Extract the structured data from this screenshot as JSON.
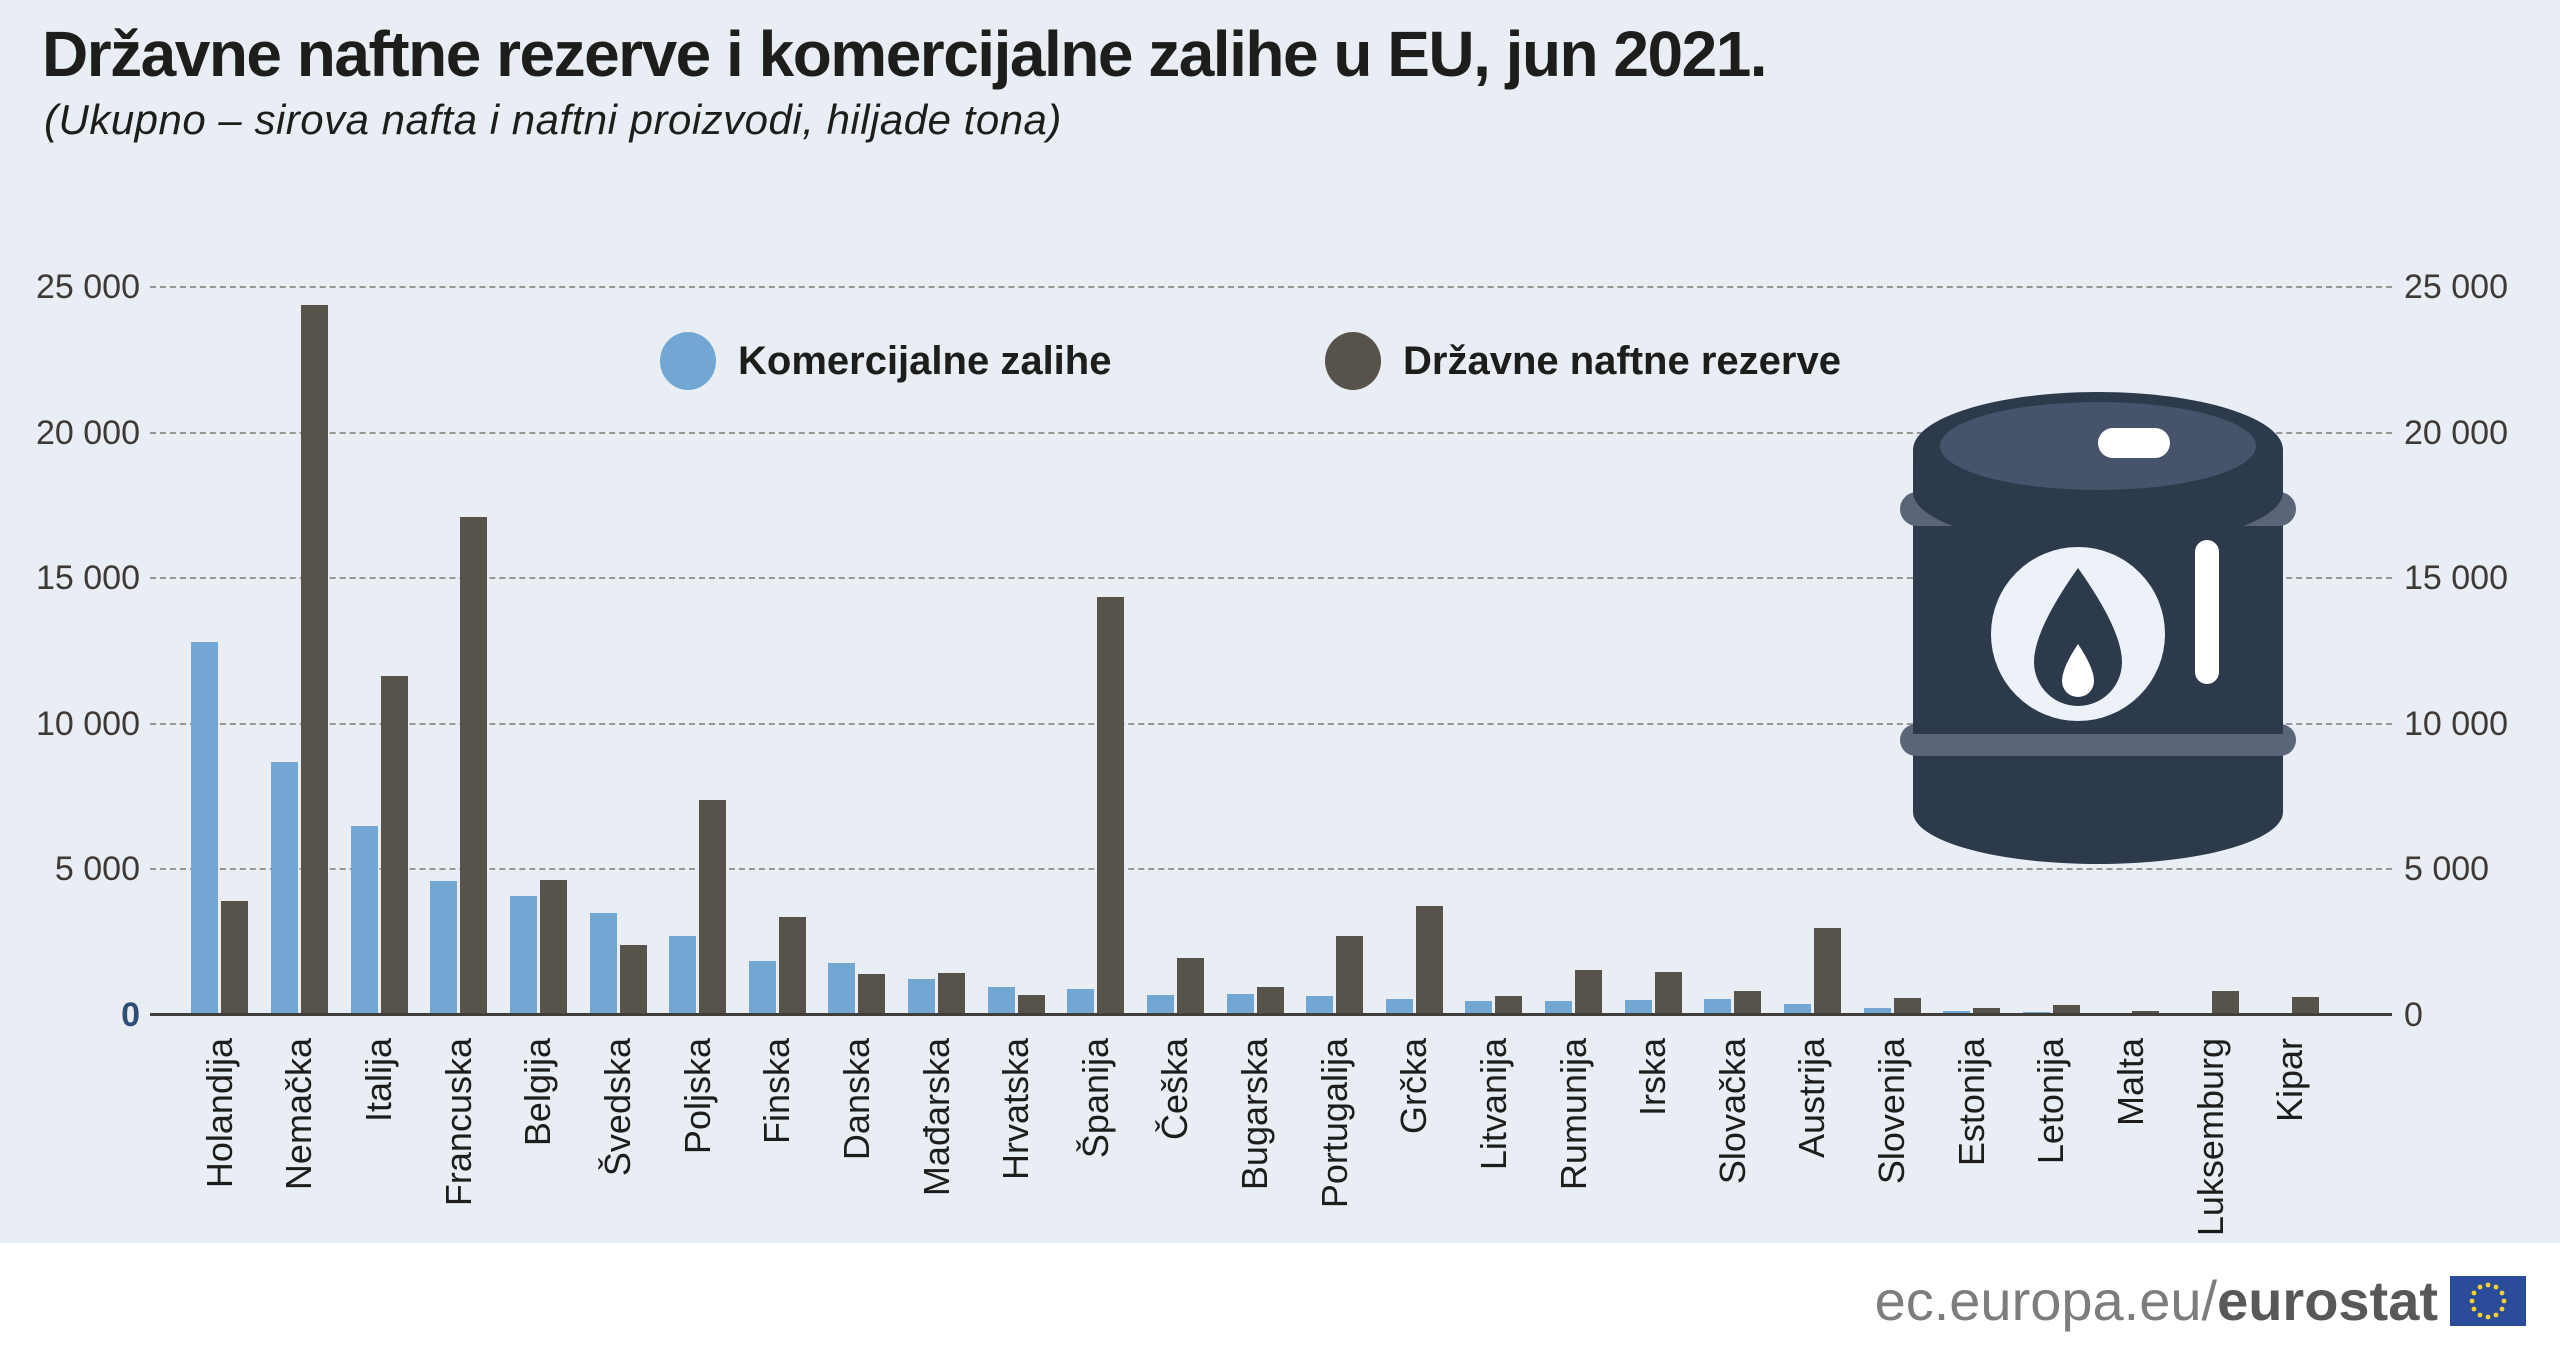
{
  "title": "Državne naftne rezerve i komercijalne zalihe u EU, jun 2021.",
  "subtitle": "(Ukupno – sirova nafta i naftni proizvodi, hiljade tona)",
  "legend": {
    "items": [
      {
        "label": "Komercijalne zalihe",
        "series": "commercial",
        "color": "#72A7D3"
      },
      {
        "label": "Državne naftne rezerve",
        "series": "emergency",
        "color": "#57524A"
      }
    ]
  },
  "y_axis": {
    "tick_values": [
      0,
      5000,
      10000,
      15000,
      20000,
      25000
    ],
    "tick_labels": [
      "0",
      "5 000",
      "10 000",
      "15 000",
      "20 000",
      "25 000"
    ],
    "max": 25000
  },
  "chart_data": {
    "type": "bar",
    "title": "Državne naftne rezerve i komercijalne zalihe u EU, jun 2021.",
    "subtitle": "(Ukupno – sirova nafta i naftni proizvodi, hiljade tona)",
    "units": "hiljade tona",
    "ylim": [
      0,
      25000
    ],
    "grid": true,
    "legend_position": "top",
    "categories": [
      "Holandija",
      "Nemačka",
      "Italija",
      "Francuska",
      "Belgija",
      "Švedska",
      "Poljska",
      "Finska",
      "Danska",
      "Mađarska",
      "Hrvatska",
      "Španija",
      "Češka",
      "Bugarska",
      "Portugalija",
      "Grčka",
      "Litvanija",
      "Rumunija",
      "Irska",
      "Slovačka",
      "Austrija",
      "Slovenija",
      "Estonija",
      "Letonija",
      "Malta",
      "Luksemburg",
      "Kipar"
    ],
    "series": [
      {
        "name": "Komercijalne zalihe",
        "color": "#72A7D3",
        "values": [
          12800,
          8700,
          6500,
          4600,
          4100,
          3500,
          2700,
          1850,
          1800,
          1250,
          950,
          900,
          700,
          720,
          650,
          560,
          480,
          490,
          530,
          550,
          380,
          250,
          150,
          100,
          80,
          50,
          60
        ]
      },
      {
        "name": "Državne naftne rezerve",
        "color": "#57524A",
        "values": [
          3900,
          24400,
          11650,
          17100,
          4650,
          2400,
          7400,
          3350,
          1400,
          1450,
          700,
          14350,
          1950,
          970,
          2700,
          3750,
          650,
          1530,
          1490,
          820,
          3000,
          570,
          250,
          340,
          130,
          820,
          610
        ]
      }
    ]
  },
  "footer": {
    "url_regular": "ec.europa.eu/",
    "url_bold": "eurostat"
  },
  "icons": {
    "barrel": "oil-barrel-icon",
    "flag": "eu-flag-icon"
  },
  "colors": {
    "background": "#E9EDF4",
    "commercial": "#72A7D3",
    "emergency": "#57524A",
    "grid": "#92928D",
    "axis_line": "#3F3E39",
    "tick_label": "#3D3935",
    "zero_label_left": "#2E4D77",
    "text": "#1D1D1B",
    "footer_gray": "#7D7D7D",
    "footer_bold": "#58585A",
    "flag_blue": "#2B4B9B",
    "flag_stars": "#F8D12E",
    "barrel_body": "#2C3A4B",
    "barrel_top_face": "#46536B",
    "barrel_band": "#5A6577",
    "barrel_emblem": "#EDF2F8"
  }
}
